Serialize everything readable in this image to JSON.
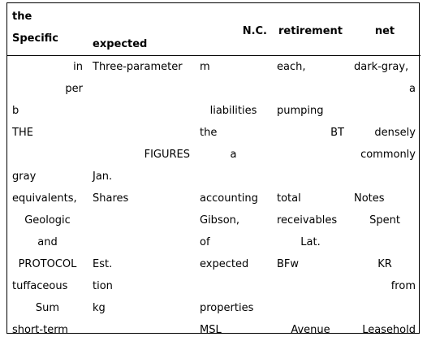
{
  "table": {
    "header": {
      "col1_line1": "the",
      "col1_line2": "Specific",
      "col2": "expected",
      "col3": "N.C.",
      "col4": "retirement",
      "col5": "net"
    },
    "rows": [
      [
        "in",
        "Three-parameter",
        "m",
        "each,",
        "dark-gray,"
      ],
      [
        "per",
        "",
        "",
        "",
        "a"
      ],
      [
        "b",
        "",
        "liabilities",
        "pumping",
        ""
      ],
      [
        "THE",
        "",
        "the",
        "BT",
        "densely"
      ],
      [
        "",
        "FIGURES",
        "a",
        "",
        "commonly"
      ],
      [
        "gray",
        "Jan.",
        "",
        "",
        ""
      ],
      [
        "equivalents,",
        "Shares",
        "accounting",
        "total",
        "Notes"
      ],
      [
        "Geologic",
        "",
        "Gibson,",
        "receivables",
        "Spent"
      ],
      [
        "and",
        "",
        "of",
        "Lat.",
        ""
      ],
      [
        "PROTOCOL",
        "Est.",
        "expected",
        "BFw",
        "KR"
      ],
      [
        "tuffaceous",
        "tion",
        "",
        "",
        "from"
      ],
      [
        "Sum",
        "kg",
        "properties",
        "",
        ""
      ],
      [
        "short-term",
        "",
        "MSL",
        "Avenue",
        "Leasehold"
      ]
    ]
  }
}
